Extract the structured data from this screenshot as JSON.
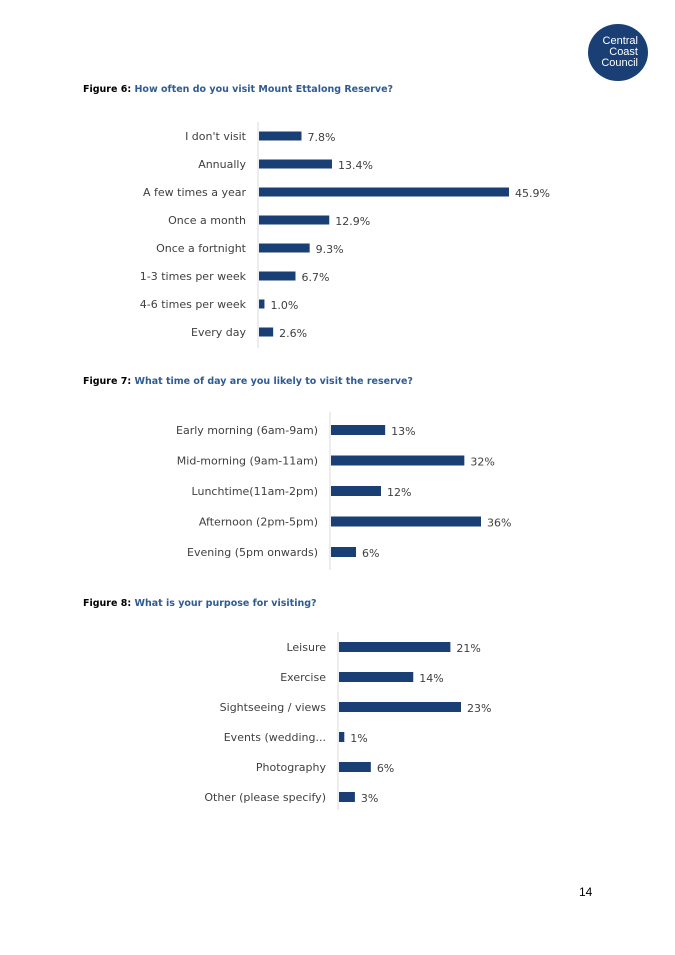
{
  "logo": {
    "lines": [
      "Central",
      "Coast",
      "Council"
    ],
    "color": "#1a3f74"
  },
  "bar_color": "#1a3f74",
  "figures": [
    {
      "label": "Figure 6:",
      "question": "How often do you visit Mount Ettalong Reserve?"
    },
    {
      "label": "Figure 7:",
      "question": "What time of day are you likely to visit the reserve?"
    },
    {
      "label": "Figure 8:",
      "question": "What is your purpose for visiting?"
    }
  ],
  "chart_data": [
    {
      "type": "bar",
      "orientation": "horizontal",
      "categories": [
        "I don't visit",
        "Annually",
        "A few times a year",
        "Once a month",
        "Once a fortnight",
        "1-3 times per week",
        "4-6 times per week",
        "Every day"
      ],
      "values": [
        7.8,
        13.4,
        45.9,
        12.9,
        9.3,
        6.7,
        1.0,
        2.6
      ],
      "data_labels": [
        "7.8%",
        "13.4%",
        "45.9%",
        "12.9%",
        "9.3%",
        "6.7%",
        "1.0%",
        "2.6%"
      ],
      "xlim": [
        0,
        45.9
      ],
      "grid": false,
      "legend": "none"
    },
    {
      "type": "bar",
      "orientation": "horizontal",
      "categories": [
        "Early morning (6am-9am)",
        "Mid-morning (9am-11am)",
        "Lunchtime(11am-2pm)",
        "Afternoon (2pm-5pm)",
        "Evening (5pm onwards)"
      ],
      "values": [
        13,
        32,
        12,
        36,
        6
      ],
      "data_labels": [
        "13%",
        "32%",
        "12%",
        "36%",
        "6%"
      ],
      "xlim": [
        0,
        36
      ],
      "grid": false,
      "legend": "none"
    },
    {
      "type": "bar",
      "orientation": "horizontal",
      "categories": [
        "Leisure",
        "Exercise",
        "Sightseeing / views",
        "Events (wedding...",
        "Photography",
        "Other (please specify)"
      ],
      "values": [
        21,
        14,
        23,
        1,
        6,
        3
      ],
      "data_labels": [
        "21%",
        "14%",
        "23%",
        "1%",
        "6%",
        "3%"
      ],
      "xlim": [
        0,
        23
      ],
      "grid": false,
      "legend": "none"
    }
  ],
  "page_number": "14"
}
